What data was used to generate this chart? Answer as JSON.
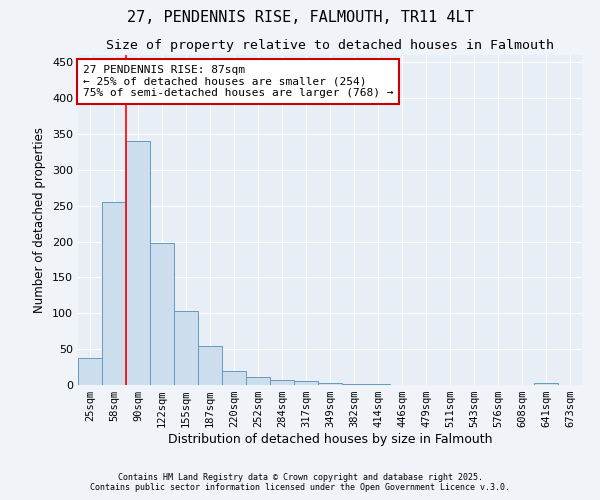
{
  "title1": "27, PENDENNIS RISE, FALMOUTH, TR11 4LT",
  "title2": "Size of property relative to detached houses in Falmouth",
  "xlabel": "Distribution of detached houses by size in Falmouth",
  "ylabel": "Number of detached properties",
  "categories": [
    "25sqm",
    "58sqm",
    "90sqm",
    "122sqm",
    "155sqm",
    "187sqm",
    "220sqm",
    "252sqm",
    "284sqm",
    "317sqm",
    "349sqm",
    "382sqm",
    "414sqm",
    "446sqm",
    "479sqm",
    "511sqm",
    "543sqm",
    "576sqm",
    "608sqm",
    "641sqm",
    "673sqm"
  ],
  "values": [
    37,
    255,
    340,
    198,
    103,
    55,
    20,
    11,
    7,
    5,
    3,
    2,
    2,
    0,
    0,
    0,
    0,
    0,
    0,
    3,
    0
  ],
  "bar_color": "#ccdded",
  "bar_edge_color": "#6699bb",
  "red_line_index": 2,
  "annotation_line1": "27 PENDENNIS RISE: 87sqm",
  "annotation_line2": "← 25% of detached houses are smaller (254)",
  "annotation_line3": "75% of semi-detached houses are larger (768) →",
  "annotation_box_color": "#ffffff",
  "annotation_edge_color": "#cc0000",
  "ylim": [
    0,
    460
  ],
  "yticks": [
    0,
    50,
    100,
    150,
    200,
    250,
    300,
    350,
    400,
    450
  ],
  "footer1": "Contains HM Land Registry data © Crown copyright and database right 2025.",
  "footer2": "Contains public sector information licensed under the Open Government Licence v.3.0.",
  "plot_bg_color": "#e8eef5",
  "fig_bg_color": "#f0f4f8",
  "grid_color": "#ffffff",
  "title_fontsize": 11,
  "subtitle_fontsize": 9.5,
  "tick_fontsize": 7.5,
  "ylabel_fontsize": 8.5,
  "xlabel_fontsize": 9,
  "annotation_fontsize": 8,
  "footer_fontsize": 6
}
